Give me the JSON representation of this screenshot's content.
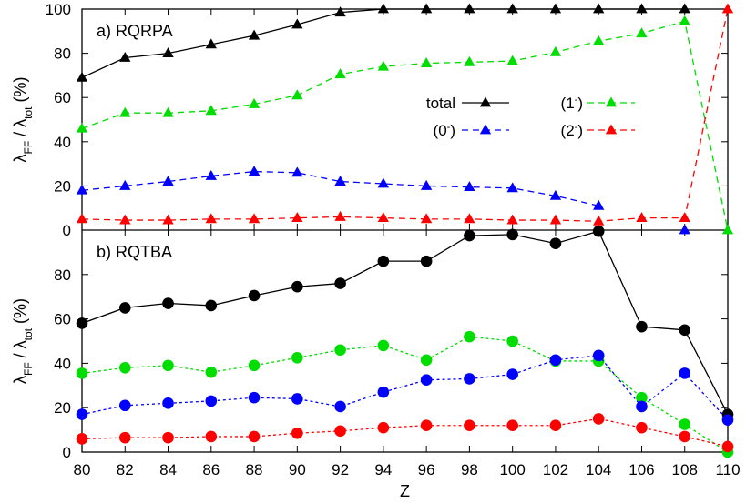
{
  "chart_data": [
    {
      "type": "line",
      "title": "a) RQRPA",
      "xlabel": "Z",
      "ylabel_main": "λ",
      "ylabel_sub1": "FF",
      "ylabel_mid": " / λ",
      "ylabel_sub2": "tot",
      "ylabel_unit": " (%)",
      "x": [
        80,
        82,
        84,
        86,
        88,
        90,
        92,
        94,
        96,
        98,
        100,
        102,
        104,
        106,
        108,
        110
      ],
      "xticks": [
        "80",
        "82",
        "84",
        "86",
        "88",
        "90",
        "92",
        "94",
        "96",
        "98",
        "100",
        "102",
        "104",
        "106",
        "108",
        "110"
      ],
      "ylim": [
        0,
        100
      ],
      "yticks": [
        "0",
        "20",
        "40",
        "60",
        "80",
        "100"
      ],
      "marker": "triangle",
      "legend_position": "center-right",
      "series": [
        {
          "name": "total",
          "color": "#000000",
          "dash": "solid",
          "values": [
            69,
            78,
            80,
            84,
            88,
            93,
            98.5,
            100,
            100,
            100,
            100,
            100,
            100,
            100,
            100,
            null
          ]
        },
        {
          "name": "(1",
          "sup": "-",
          "suffix": ")",
          "color": "#00dd00",
          "dash": "dashed",
          "values": [
            46,
            53,
            53,
            54,
            57,
            61,
            70.5,
            74,
            75.5,
            76,
            76.5,
            80.5,
            85.5,
            89,
            94.5,
            0
          ]
        },
        {
          "name": "(0",
          "sup": "-",
          "suffix": ")",
          "color": "#0000ff",
          "dash": "dashed",
          "values": [
            18,
            20,
            22,
            24.5,
            26.5,
            26,
            22,
            21,
            20,
            19.5,
            19,
            15.5,
            11,
            null,
            0,
            null
          ]
        },
        {
          "name": "(2",
          "sup": "-",
          "suffix": ")",
          "color": "#ff0000",
          "dash": "dashed",
          "values": [
            5,
            4.5,
            4.5,
            5,
            5,
            5.5,
            6,
            5.5,
            5,
            5,
            4.5,
            4.5,
            4,
            5.5,
            5.5,
            100
          ]
        }
      ]
    },
    {
      "type": "line",
      "title": "b) RQTBA",
      "xlabel": "Z",
      "ylabel_main": "λ",
      "ylabel_sub1": "FF",
      "ylabel_mid": " / λ",
      "ylabel_sub2": "tot",
      "ylabel_unit": " (%)",
      "x": [
        80,
        82,
        84,
        86,
        88,
        90,
        92,
        94,
        96,
        98,
        100,
        102,
        104,
        106,
        108,
        110
      ],
      "ylim": [
        0,
        100
      ],
      "yticks": [
        "0",
        "20",
        "40",
        "60",
        "80"
      ],
      "marker": "circle",
      "series": [
        {
          "name": "total",
          "color": "#000000",
          "dash": "solid",
          "values": [
            58,
            65,
            67,
            66,
            70.5,
            74.5,
            76,
            86,
            86,
            97.5,
            98,
            94,
            99.5,
            56.5,
            55,
            17
          ]
        },
        {
          "name": "(1-)",
          "color": "#00dd00",
          "dash": "dotted",
          "values": [
            35.5,
            38,
            39,
            36,
            39,
            42.5,
            46,
            48,
            41.5,
            52,
            50,
            41,
            41,
            24.5,
            12.5,
            0
          ]
        },
        {
          "name": "(0-)",
          "color": "#0000ff",
          "dash": "dotted",
          "values": [
            17,
            21,
            22,
            23,
            24.5,
            24,
            20.5,
            27,
            32.5,
            33,
            35,
            41.5,
            43.5,
            20.5,
            35.5,
            14.5
          ]
        },
        {
          "name": "(2-)",
          "color": "#ff0000",
          "dash": "dotted",
          "values": [
            6,
            6.5,
            6.5,
            7,
            7,
            8.5,
            9.5,
            11,
            12,
            12,
            12,
            12,
            15,
            11,
            7,
            2.5
          ]
        }
      ]
    }
  ]
}
